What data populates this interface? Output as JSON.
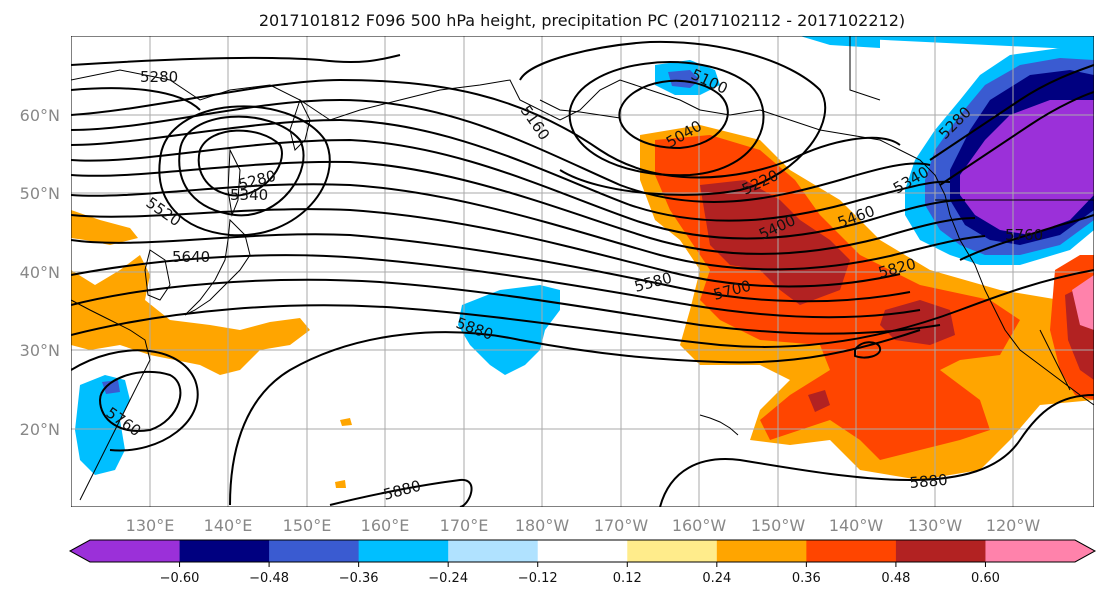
{
  "title": "2017101812 F096 500 hPa height, precipitation PC (2017102112 - 2017102212)",
  "lat_labels": [
    "60°N",
    "50°N",
    "40°N",
    "30°N",
    "20°N"
  ],
  "lon_labels": [
    "130°E",
    "140°E",
    "150°E",
    "160°E",
    "170°E",
    "180°W",
    "170°W",
    "160°W",
    "150°W",
    "140°W",
    "130°W",
    "120°W"
  ],
  "contour_labels": [
    "5280",
    "5100",
    "5160",
    "5040",
    "5220",
    "5280",
    "5340",
    "5520",
    "5640",
    "5400",
    "5460",
    "5580",
    "5700",
    "5820",
    "5880",
    "5760",
    "5880",
    "5880",
    "5280",
    "5760",
    "5340"
  ],
  "colorbar": {
    "ticks": [
      "−0.60",
      "−0.48",
      "−0.36",
      "−0.24",
      "−0.12",
      "0.12",
      "0.24",
      "0.36",
      "0.48",
      "0.60"
    ],
    "colors": [
      "#9b30d9",
      "#000080",
      "#3a5bd1",
      "#00bfff",
      "#b0e2ff",
      "#ffffff",
      "#ffec8b",
      "#ffa500",
      "#ff4500",
      "#b22222",
      "#ff82ab"
    ]
  },
  "colors": {
    "purple": "#9b30d9",
    "navy": "#000080",
    "royal": "#3a5bd1",
    "sky": "#00bfff",
    "light": "#b0e2ff",
    "yellow": "#ffec8b",
    "orange": "#ffa500",
    "red": "#ff4500",
    "darkred": "#b22222",
    "pink": "#ff82ab"
  }
}
